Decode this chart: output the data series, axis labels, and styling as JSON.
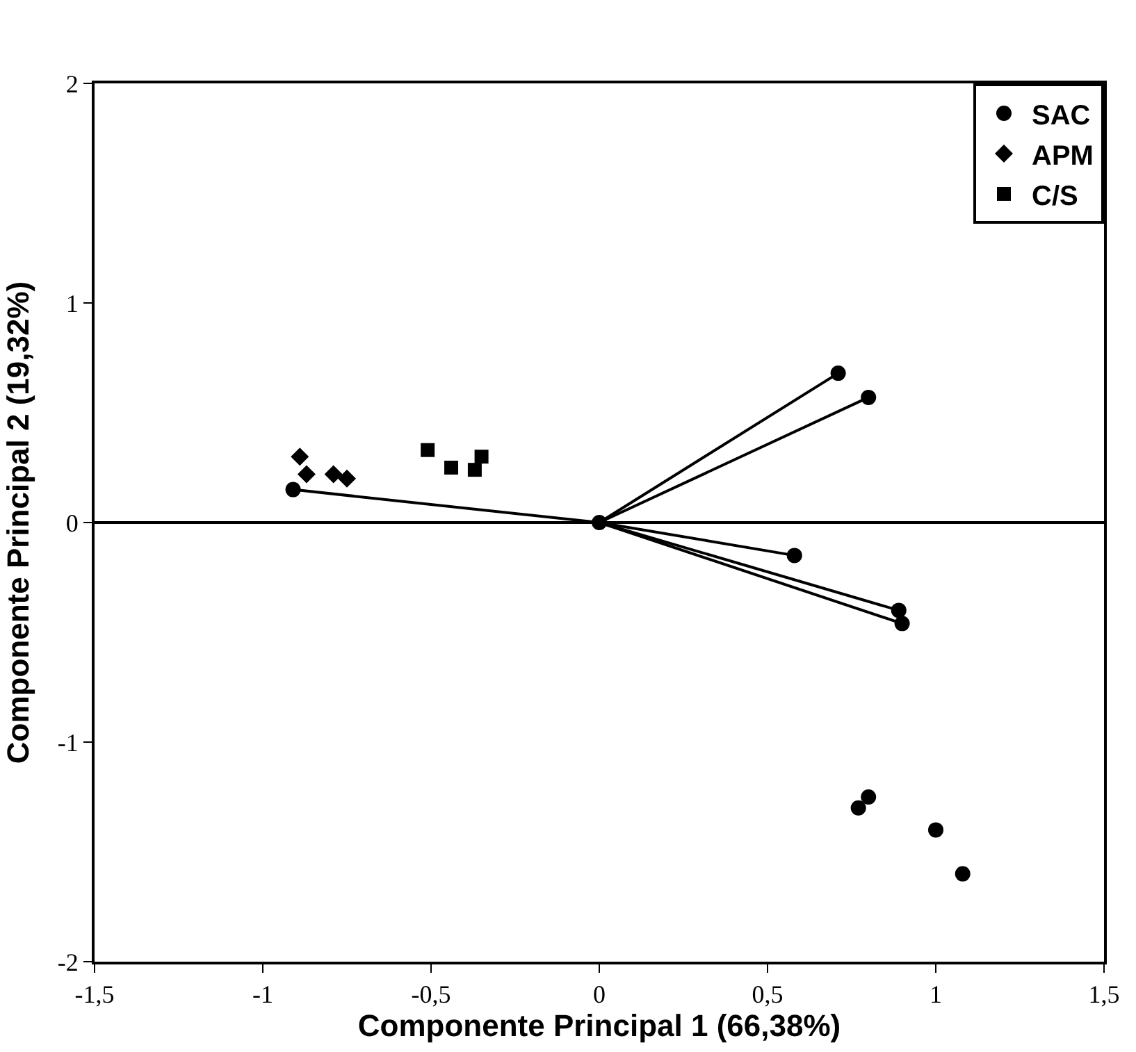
{
  "chart_data": {
    "type": "scatter",
    "xlabel": "Componente Principal 1 (66,38%)",
    "ylabel": "Componente Principal 2 (19,32%)",
    "xlim": [
      -1.5,
      1.5
    ],
    "ylim": [
      -2,
      2
    ],
    "xticks": [
      {
        "value": -1.5,
        "label": "-1,5"
      },
      -1,
      {
        "value": -0.5,
        "label": "-0,5"
      },
      0,
      {
        "value": 0.5,
        "label": "0,5"
      },
      1,
      {
        "value": 1.5,
        "label": "1,5"
      }
    ],
    "yticks": [
      -2,
      -1,
      0,
      1,
      2
    ],
    "grid": false,
    "legend": "top right",
    "ref_lines": [
      {
        "axis": "y",
        "value": 0,
        "color": "#000000"
      }
    ],
    "series": [
      {
        "type": "line",
        "marker": "none",
        "color": "#000000",
        "x": [
          0,
          -0.91
        ],
        "values": [
          0,
          0.15
        ]
      },
      {
        "type": "line",
        "marker": "none",
        "color": "#000000",
        "x": [
          0,
          0.71
        ],
        "values": [
          0,
          0.68
        ]
      },
      {
        "type": "line",
        "marker": "none",
        "color": "#000000",
        "x": [
          0,
          0.8
        ],
        "values": [
          0,
          0.57
        ]
      },
      {
        "type": "line",
        "marker": "none",
        "color": "#000000",
        "x": [
          0,
          0.58
        ],
        "values": [
          0,
          -0.15
        ]
      },
      {
        "type": "line",
        "marker": "none",
        "color": "#000000",
        "x": [
          0,
          0.89
        ],
        "values": [
          0,
          -0.4
        ]
      },
      {
        "type": "line",
        "marker": "none",
        "color": "#000000",
        "x": [
          0,
          0.9
        ],
        "values": [
          0,
          -0.46
        ]
      },
      {
        "name": "SAC",
        "marker": "circle",
        "color": "#000000",
        "x": [
          -0.91,
          0,
          0.71,
          0.8,
          0.58,
          0.89,
          0.9,
          0.77,
          0.8,
          1.0,
          1.08
        ],
        "values": [
          0.15,
          0,
          0.68,
          0.57,
          -0.15,
          -0.4,
          -0.46,
          -1.3,
          -1.25,
          -1.4,
          -1.6
        ]
      },
      {
        "name": "APM",
        "marker": "diamond",
        "color": "#000000",
        "x": [
          -0.89,
          -0.87,
          -0.79,
          -0.75
        ],
        "values": [
          0.3,
          0.22,
          0.22,
          0.2
        ]
      },
      {
        "name": "C/S",
        "marker": "square",
        "color": "#000000",
        "x": [
          -0.51,
          -0.44,
          -0.37,
          -0.35
        ],
        "values": [
          0.33,
          0.25,
          0.24,
          0.3
        ]
      }
    ]
  }
}
